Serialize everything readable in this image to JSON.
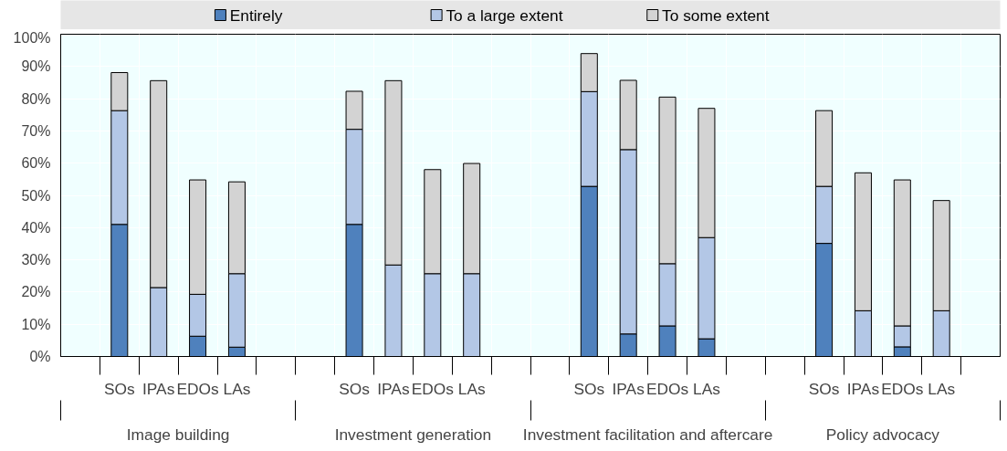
{
  "chart_data": {
    "type": "bar",
    "stacked": true,
    "categories": [
      null,
      "SOs",
      "IPAs",
      "EDOs",
      "LAs",
      null,
      null,
      "SOs",
      "IPAs",
      "EDOs",
      "LAs",
      null,
      null,
      "SOs",
      "IPAs",
      "EDOs",
      "LAs",
      null,
      null,
      "SOs",
      "IPAs",
      "EDOs",
      "LAs",
      null
    ],
    "series": [
      {
        "name": "Entirely",
        "color": "#4f81bd",
        "values": [
          null,
          41.0,
          0,
          6.3,
          2.9,
          null,
          null,
          41.0,
          0,
          0,
          0,
          null,
          null,
          52.8,
          7.0,
          9.5,
          5.5,
          null,
          null,
          35.1,
          0,
          3.0,
          0,
          null
        ]
      },
      {
        "name": "To a large extent",
        "color": "#b3c7e6",
        "values": [
          null,
          35.3,
          21.4,
          13.0,
          22.8,
          null,
          null,
          29.5,
          28.4,
          25.7,
          25.7,
          null,
          null,
          29.4,
          57.2,
          19.3,
          31.4,
          null,
          null,
          17.7,
          14.2,
          6.5,
          14.2,
          null
        ]
      },
      {
        "name": "To some extent",
        "color": "#d3d3d3",
        "values": [
          null,
          11.8,
          64.2,
          35.5,
          28.5,
          null,
          null,
          11.8,
          57.2,
          32.3,
          34.2,
          null,
          null,
          11.8,
          21.5,
          51.7,
          40.1,
          null,
          null,
          23.5,
          42.8,
          45.3,
          34.2,
          null
        ]
      }
    ],
    "annotations": [
      "Image building",
      "Investment generation",
      "Investment facilitation and aftercare",
      "Policy advocacy"
    ],
    "ylim": [
      0,
      100
    ],
    "yticks": [
      {
        "value": 0,
        "label": "0%"
      },
      {
        "value": 10,
        "label": "10%"
      },
      {
        "value": 20,
        "label": "20%"
      },
      {
        "value": 30,
        "label": "30%"
      },
      {
        "value": 40,
        "label": "40%"
      },
      {
        "value": 50,
        "label": "50%"
      },
      {
        "value": 60,
        "label": "60%"
      },
      {
        "value": 70,
        "label": "70%"
      },
      {
        "value": 80,
        "label": "80%"
      },
      {
        "value": 90,
        "label": "90%"
      },
      {
        "value": 100,
        "label": "100%"
      }
    ],
    "grid": true,
    "legend": "top"
  }
}
